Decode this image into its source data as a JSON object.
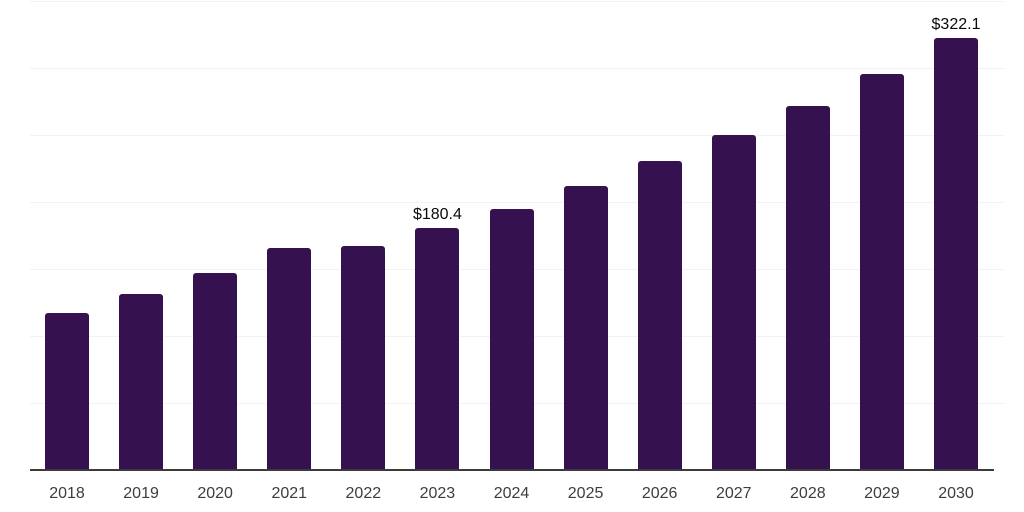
{
  "chart_data": {
    "type": "bar",
    "title": "",
    "xlabel": "",
    "ylabel": "",
    "categories": [
      "2018",
      "2019",
      "2020",
      "2021",
      "2022",
      "2023",
      "2024",
      "2025",
      "2026",
      "2027",
      "2028",
      "2029",
      "2030"
    ],
    "values": [
      117.2,
      131.3,
      147.0,
      165.7,
      167.2,
      180.4,
      194.8,
      211.9,
      230.6,
      250.0,
      271.6,
      295.5,
      322.1
    ],
    "value_labels": [
      "",
      "",
      "",
      "",
      "",
      "$180.4",
      "",
      "",
      "",
      "",
      "",
      "",
      "$322.1"
    ],
    "ylim": [
      0,
      350
    ],
    "gridline_interval": 50,
    "grid": "horizontal",
    "y_tick_labels_shown": false,
    "legend": "none",
    "colors": {
      "bar": "#36114f",
      "gridline": "#f2f2f2",
      "axis_line": "#3b3b3b",
      "tick_label": "#3d3d3d",
      "value_label": "#0a0a0a",
      "background": "#ffffff"
    }
  }
}
